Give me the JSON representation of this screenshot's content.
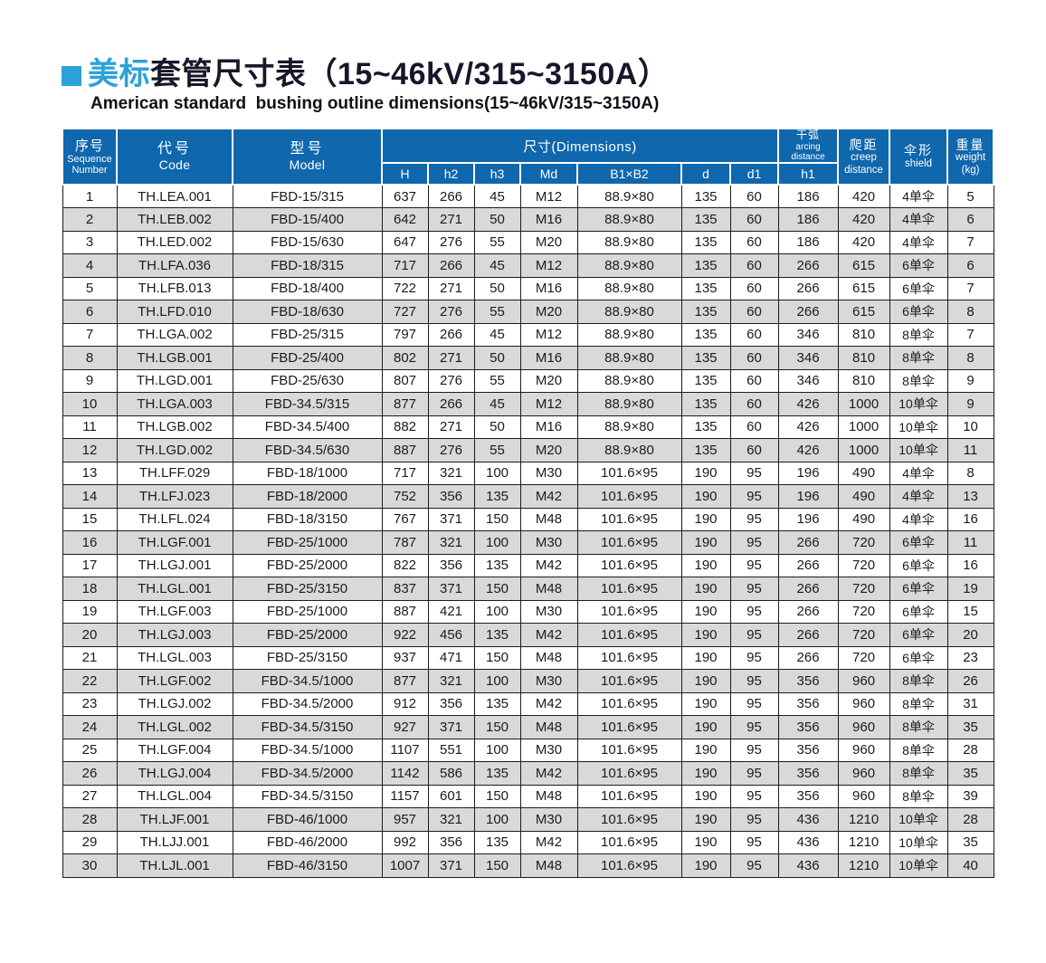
{
  "page": {
    "title_highlight": "美标",
    "title_rest": "套管尺寸表（15~46kV/315~3150A）",
    "subtitle": "American standard  bushing outline dimensions(15~46kV/315~3150A)"
  },
  "colors": {
    "accent_blue": "#2ba2d8",
    "header_blue": "#0f67ad",
    "row_stripe": "#d9d9d9",
    "title_dark": "#17172b",
    "grid_border": "#1c1c1c"
  },
  "table": {
    "header": {
      "seq_zh": "序号",
      "seq_en1": "Sequence",
      "seq_en2": "Number",
      "code_zh": "代号",
      "code_en": "Code",
      "model_zh": "型号",
      "model_en": "Model",
      "dims": "尺寸(Dimensions)",
      "dim_cols": {
        "h": "H",
        "h2": "h2",
        "h3": "h3",
        "md": "Md",
        "b1b2": "B1×B2",
        "d": "d",
        "d1": "d1"
      },
      "arcing_zh": "干弧",
      "arcing_en1": "arcing",
      "arcing_en2": "distance",
      "arcing_sub": "h1",
      "creep_zh": "爬距",
      "creep_en1": "creep",
      "creep_en2": "distance",
      "shield_zh": "伞形",
      "shield_en": "shield",
      "weight_zh": "重量",
      "weight_en": "weight",
      "weight_unit": "(kg)"
    },
    "col_keys": [
      "seq",
      "code",
      "model",
      "H",
      "h2",
      "h3",
      "Md",
      "B1xB2",
      "d",
      "d1",
      "h1",
      "creep",
      "shield",
      "weight"
    ],
    "rows": [
      [
        "1",
        "TH.LEA.001",
        "FBD-15/315",
        "637",
        "266",
        "45",
        "M12",
        "88.9×80",
        "135",
        "60",
        "186",
        "420",
        "4单伞",
        "5"
      ],
      [
        "2",
        "TH.LEB.002",
        "FBD-15/400",
        "642",
        "271",
        "50",
        "M16",
        "88.9×80",
        "135",
        "60",
        "186",
        "420",
        "4单伞",
        "6"
      ],
      [
        "3",
        "TH.LED.002",
        "FBD-15/630",
        "647",
        "276",
        "55",
        "M20",
        "88.9×80",
        "135",
        "60",
        "186",
        "420",
        "4单伞",
        "7"
      ],
      [
        "4",
        "TH.LFA.036",
        "FBD-18/315",
        "717",
        "266",
        "45",
        "M12",
        "88.9×80",
        "135",
        "60",
        "266",
        "615",
        "6单伞",
        "6"
      ],
      [
        "5",
        "TH.LFB.013",
        "FBD-18/400",
        "722",
        "271",
        "50",
        "M16",
        "88.9×80",
        "135",
        "60",
        "266",
        "615",
        "6单伞",
        "7"
      ],
      [
        "6",
        "TH.LFD.010",
        "FBD-18/630",
        "727",
        "276",
        "55",
        "M20",
        "88.9×80",
        "135",
        "60",
        "266",
        "615",
        "6单伞",
        "8"
      ],
      [
        "7",
        "TH.LGA.002",
        "FBD-25/315",
        "797",
        "266",
        "45",
        "M12",
        "88.9×80",
        "135",
        "60",
        "346",
        "810",
        "8单伞",
        "7"
      ],
      [
        "8",
        "TH.LGB.001",
        "FBD-25/400",
        "802",
        "271",
        "50",
        "M16",
        "88.9×80",
        "135",
        "60",
        "346",
        "810",
        "8单伞",
        "8"
      ],
      [
        "9",
        "TH.LGD.001",
        "FBD-25/630",
        "807",
        "276",
        "55",
        "M20",
        "88.9×80",
        "135",
        "60",
        "346",
        "810",
        "8单伞",
        "9"
      ],
      [
        "10",
        "TH.LGA.003",
        "FBD-34.5/315",
        "877",
        "266",
        "45",
        "M12",
        "88.9×80",
        "135",
        "60",
        "426",
        "1000",
        "10单伞",
        "9"
      ],
      [
        "11",
        "TH.LGB.002",
        "FBD-34.5/400",
        "882",
        "271",
        "50",
        "M16",
        "88.9×80",
        "135",
        "60",
        "426",
        "1000",
        "10单伞",
        "10"
      ],
      [
        "12",
        "TH.LGD.002",
        "FBD-34.5/630",
        "887",
        "276",
        "55",
        "M20",
        "88.9×80",
        "135",
        "60",
        "426",
        "1000",
        "10单伞",
        "11"
      ],
      [
        "13",
        "TH.LFF.029",
        "FBD-18/1000",
        "717",
        "321",
        "100",
        "M30",
        "101.6×95",
        "190",
        "95",
        "196",
        "490",
        "4单伞",
        "8"
      ],
      [
        "14",
        "TH.LFJ.023",
        "FBD-18/2000",
        "752",
        "356",
        "135",
        "M42",
        "101.6×95",
        "190",
        "95",
        "196",
        "490",
        "4单伞",
        "13"
      ],
      [
        "15",
        "TH.LFL.024",
        "FBD-18/3150",
        "767",
        "371",
        "150",
        "M48",
        "101.6×95",
        "190",
        "95",
        "196",
        "490",
        "4单伞",
        "16"
      ],
      [
        "16",
        "TH.LGF.001",
        "FBD-25/1000",
        "787",
        "321",
        "100",
        "M30",
        "101.6×95",
        "190",
        "95",
        "266",
        "720",
        "6单伞",
        "11"
      ],
      [
        "17",
        "TH.LGJ.001",
        "FBD-25/2000",
        "822",
        "356",
        "135",
        "M42",
        "101.6×95",
        "190",
        "95",
        "266",
        "720",
        "6单伞",
        "16"
      ],
      [
        "18",
        "TH.LGL.001",
        "FBD-25/3150",
        "837",
        "371",
        "150",
        "M48",
        "101.6×95",
        "190",
        "95",
        "266",
        "720",
        "6单伞",
        "19"
      ],
      [
        "19",
        "TH.LGF.003",
        "FBD-25/1000",
        "887",
        "421",
        "100",
        "M30",
        "101.6×95",
        "190",
        "95",
        "266",
        "720",
        "6单伞",
        "15"
      ],
      [
        "20",
        "TH.LGJ.003",
        "FBD-25/2000",
        "922",
        "456",
        "135",
        "M42",
        "101.6×95",
        "190",
        "95",
        "266",
        "720",
        "6单伞",
        "20"
      ],
      [
        "21",
        "TH.LGL.003",
        "FBD-25/3150",
        "937",
        "471",
        "150",
        "M48",
        "101.6×95",
        "190",
        "95",
        "266",
        "720",
        "6单伞",
        "23"
      ],
      [
        "22",
        "TH.LGF.002",
        "FBD-34.5/1000",
        "877",
        "321",
        "100",
        "M30",
        "101.6×95",
        "190",
        "95",
        "356",
        "960",
        "8单伞",
        "26"
      ],
      [
        "23",
        "TH.LGJ.002",
        "FBD-34.5/2000",
        "912",
        "356",
        "135",
        "M42",
        "101.6×95",
        "190",
        "95",
        "356",
        "960",
        "8单伞",
        "31"
      ],
      [
        "24",
        "TH.LGL.002",
        "FBD-34.5/3150",
        "927",
        "371",
        "150",
        "M48",
        "101.6×95",
        "190",
        "95",
        "356",
        "960",
        "8单伞",
        "35"
      ],
      [
        "25",
        "TH.LGF.004",
        "FBD-34.5/1000",
        "1107",
        "551",
        "100",
        "M30",
        "101.6×95",
        "190",
        "95",
        "356",
        "960",
        "8单伞",
        "28"
      ],
      [
        "26",
        "TH.LGJ.004",
        "FBD-34.5/2000",
        "1142",
        "586",
        "135",
        "M42",
        "101.6×95",
        "190",
        "95",
        "356",
        "960",
        "8单伞",
        "35"
      ],
      [
        "27",
        "TH.LGL.004",
        "FBD-34.5/3150",
        "1157",
        "601",
        "150",
        "M48",
        "101.6×95",
        "190",
        "95",
        "356",
        "960",
        "8单伞",
        "39"
      ],
      [
        "28",
        "TH.LJF.001",
        "FBD-46/1000",
        "957",
        "321",
        "100",
        "M30",
        "101.6×95",
        "190",
        "95",
        "436",
        "1210",
        "10单伞",
        "28"
      ],
      [
        "29",
        "TH.LJJ.001",
        "FBD-46/2000",
        "992",
        "356",
        "135",
        "M42",
        "101.6×95",
        "190",
        "95",
        "436",
        "1210",
        "10单伞",
        "35"
      ],
      [
        "30",
        "TH.LJL.001",
        "FBD-46/3150",
        "1007",
        "371",
        "150",
        "M48",
        "101.6×95",
        "190",
        "95",
        "436",
        "1210",
        "10单伞",
        "40"
      ]
    ]
  }
}
